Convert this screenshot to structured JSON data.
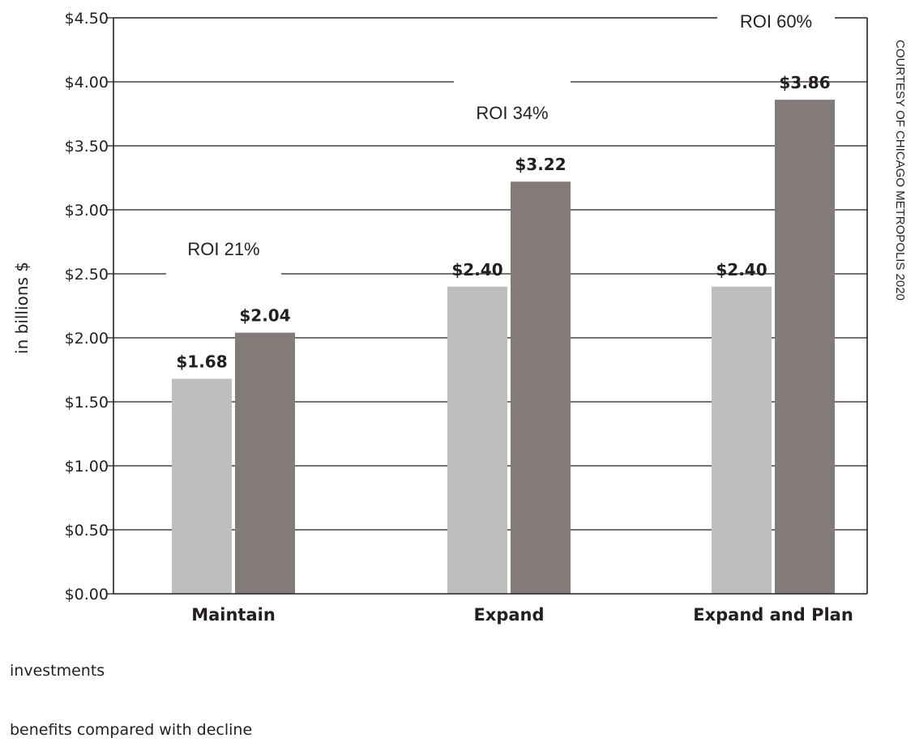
{
  "chart_data": {
    "type": "bar",
    "categories": [
      "Maintain",
      "Expand",
      "Expand and Plan"
    ],
    "series": [
      {
        "name": "investments",
        "color": "#c0bdbd",
        "values": [
          1.68,
          2.4,
          2.4
        ],
        "labels": [
          "$1.68",
          "$2.40",
          "$2.40"
        ]
      },
      {
        "name": "benefits compared with decline",
        "color": "#827b7a",
        "values": [
          2.04,
          3.22,
          3.86
        ],
        "labels": [
          "$2.04",
          "$3.22",
          "$3.86"
        ]
      }
    ],
    "annotations": [
      "ROI 21%",
      "ROI 34%",
      "ROI 60%"
    ],
    "ylabel": "in billions $",
    "ylim": [
      0,
      4.5
    ],
    "yticks": [
      {
        "value": 0,
        "label": "$0.00"
      },
      {
        "value": 0.5,
        "label": "$0.50"
      },
      {
        "value": 1.0,
        "label": "$1.00"
      },
      {
        "value": 1.5,
        "label": "$1.50"
      },
      {
        "value": 2.0,
        "label": "$2.00"
      },
      {
        "value": 2.5,
        "label": "$2.50"
      },
      {
        "value": 3.0,
        "label": "$3.00"
      },
      {
        "value": 3.5,
        "label": "$3.50"
      },
      {
        "value": 4.0,
        "label": "$4.00"
      },
      {
        "value": 4.5,
        "label": "$4.50"
      }
    ],
    "grid": true,
    "legend_position": "bottom-left",
    "credit": "COURTESY OF CHICAGO METROPOLIS 2020"
  }
}
